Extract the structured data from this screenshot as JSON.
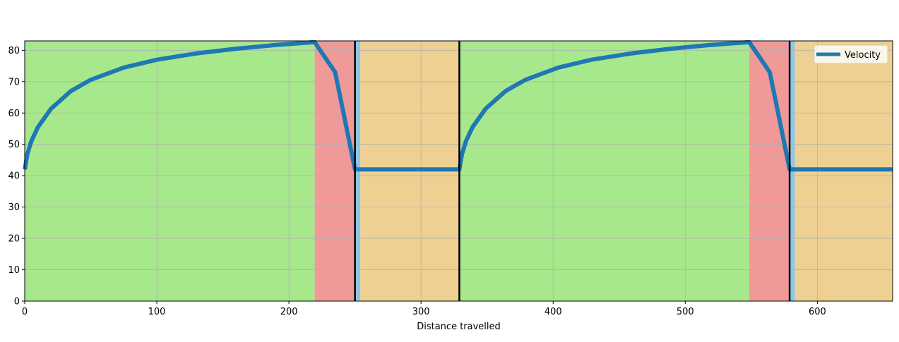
{
  "chart_data": {
    "type": "line",
    "title": "",
    "xlabel": "Distance travelled",
    "ylabel": "",
    "xlim": [
      0,
      657
    ],
    "ylim": [
      0,
      83
    ],
    "xticks": [
      0,
      100,
      200,
      300,
      400,
      500,
      600
    ],
    "yticks": [
      0,
      10,
      20,
      30,
      40,
      50,
      60,
      70,
      80
    ],
    "grid": true,
    "legend": {
      "position": "top-right",
      "entries": [
        "Velocity"
      ]
    },
    "background_regions": [
      {
        "x0": 0,
        "x1": 219.5,
        "color": "#a8e88d"
      },
      {
        "x0": 219.5,
        "x1": 250,
        "color": "#ef9a98"
      },
      {
        "x0": 250,
        "x1": 254,
        "color": "#8ec7e6"
      },
      {
        "x0": 254,
        "x1": 329,
        "color": "#efd093"
      },
      {
        "x0": 329,
        "x1": 548.5,
        "color": "#a8e88d"
      },
      {
        "x0": 548.5,
        "x1": 579,
        "color": "#ef9a98"
      },
      {
        "x0": 579,
        "x1": 583,
        "color": "#8ec7e6"
      },
      {
        "x0": 583,
        "x1": 657,
        "color": "#efd093"
      }
    ],
    "vertical_lines": [
      250,
      329,
      579
    ],
    "series": [
      {
        "name": "Velocity",
        "color": "#1f77b4",
        "x": [
          0,
          2,
          5,
          10,
          20,
          35,
          50,
          75,
          100,
          130,
          160,
          190,
          219.5,
          235,
          250,
          300,
          329,
          331,
          334,
          339,
          349,
          364,
          379,
          404,
          429,
          459,
          489,
          519,
          548.5,
          564,
          579,
          620,
          657
        ],
        "y": [
          42,
          46.9,
          51,
          55.5,
          61.4,
          67,
          70.6,
          74.5,
          77,
          79,
          80.5,
          81.7,
          82.6,
          73,
          42,
          42,
          42,
          46.9,
          51,
          55.5,
          61.4,
          67,
          70.6,
          74.5,
          77,
          79,
          80.5,
          81.7,
          82.6,
          73,
          42,
          42,
          42
        ]
      }
    ]
  }
}
